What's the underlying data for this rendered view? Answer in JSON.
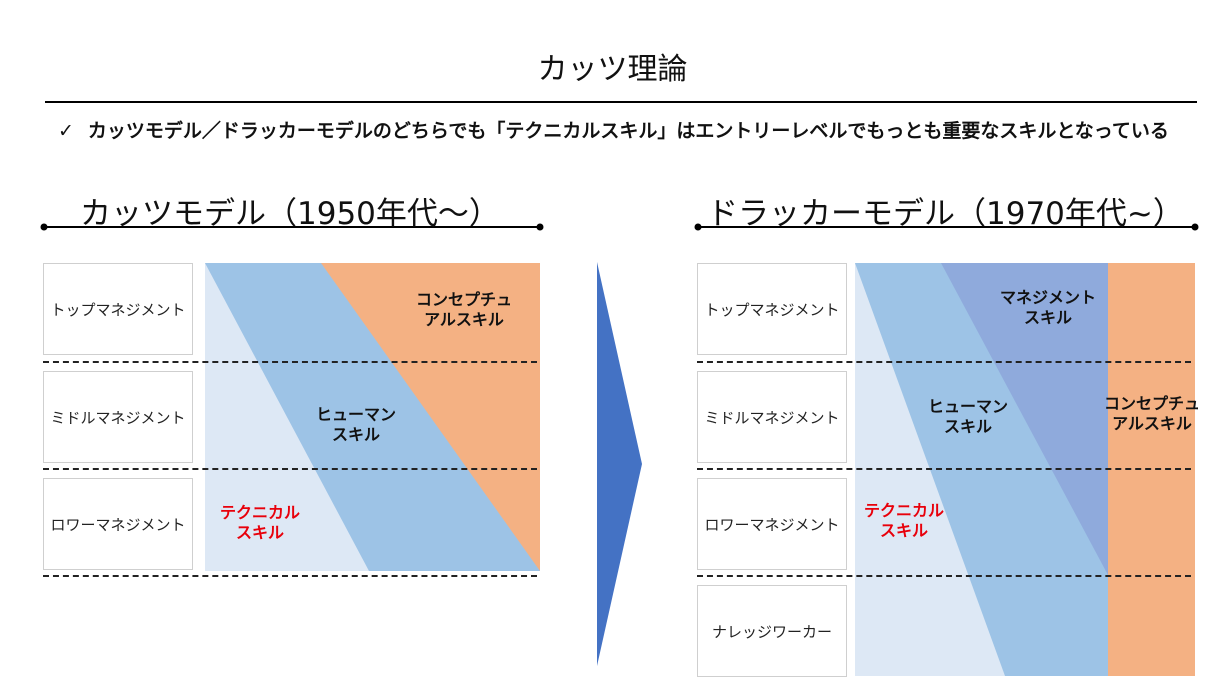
{
  "title": "カッツ理論",
  "key_point": {
    "check_icon": "✓",
    "text": "カッツモデル／ドラッカーモデルのどちらでも「テクニカルスキル」はエントリーレベルでもっとも重要なスキルとなっている"
  },
  "katz_model": {
    "title": "カッツモデル（1950年代～）",
    "levels": [
      "トップマネジメント",
      "ミドルマネジメント",
      "ロワーマネジメント"
    ],
    "skills": {
      "conceptual": [
        "コンセプチュ",
        "アルスキル"
      ],
      "human": [
        "ヒューマン",
        "スキル"
      ],
      "technical": [
        "テクニカル",
        "スキル"
      ]
    }
  },
  "drucker_model": {
    "title": "ドラッカーモデル（1970年代~）",
    "levels": [
      "トップマネジメント",
      "ミドルマネジメント",
      "ロワーマネジメント",
      "ナレッジワーカー"
    ],
    "skills": {
      "management": [
        "マネジメント",
        "スキル"
      ],
      "human": [
        "ヒューマン",
        "スキル"
      ],
      "technical": [
        "テクニカル",
        "スキル"
      ],
      "conceptual": [
        "コンセプチュ",
        "アルスキル"
      ]
    }
  },
  "colors": {
    "technical": "#dde8f5",
    "human": "#9dc3e6",
    "management": "#8faadc",
    "conceptual": "#f4b183",
    "arrow": "#4472c4",
    "technical_label": "#e8000b"
  }
}
